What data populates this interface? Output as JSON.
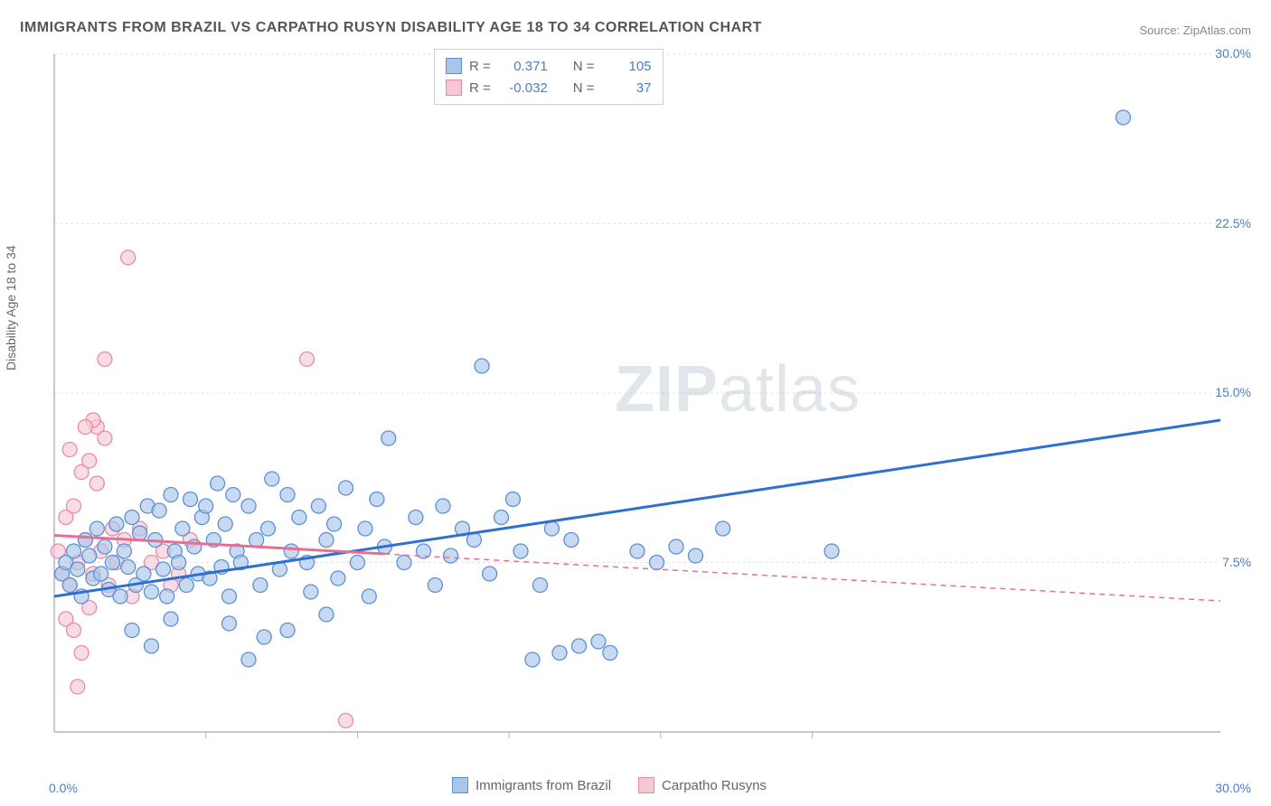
{
  "title": "IMMIGRANTS FROM BRAZIL VS CARPATHO RUSYN DISABILITY AGE 18 TO 34 CORRELATION CHART",
  "source": "Source: ZipAtlas.com",
  "y_axis_label": "Disability Age 18 to 34",
  "watermark_bold": "ZIP",
  "watermark_rest": "atlas",
  "chart": {
    "type": "scatter",
    "xlim": [
      0,
      30
    ],
    "ylim": [
      0,
      30
    ],
    "y_ticks": [
      7.5,
      15.0,
      22.5,
      30.0
    ],
    "y_tick_labels": [
      "7.5%",
      "15.0%",
      "22.5%",
      "30.0%"
    ],
    "x_tick_min_label": "0.0%",
    "x_tick_max_label": "30.0%",
    "x_minor_ticks": [
      3.9,
      7.8,
      11.7,
      15.6,
      19.5
    ],
    "background_color": "#ffffff",
    "grid_color": "#e3e3e3",
    "axis_color": "#b5b5b5",
    "series_a": {
      "name": "Immigrants from Brazil",
      "fill_color": "#a9c6ea",
      "stroke_color": "#5b8fd6",
      "line_color": "#2f6fd0",
      "r_value": "0.371",
      "n_value": "105",
      "marker_radius": 8,
      "trend": {
        "x1": 0,
        "y1": 6.0,
        "x2": 30,
        "y2": 13.8,
        "solid_until_x": 10.3
      },
      "points": [
        [
          0.2,
          7.0
        ],
        [
          0.3,
          7.5
        ],
        [
          0.4,
          6.5
        ],
        [
          0.5,
          8.0
        ],
        [
          0.6,
          7.2
        ],
        [
          0.7,
          6.0
        ],
        [
          0.8,
          8.5
        ],
        [
          0.9,
          7.8
        ],
        [
          1.0,
          6.8
        ],
        [
          1.1,
          9.0
        ],
        [
          1.2,
          7.0
        ],
        [
          1.3,
          8.2
        ],
        [
          1.4,
          6.3
        ],
        [
          1.5,
          7.5
        ],
        [
          1.6,
          9.2
        ],
        [
          1.7,
          6.0
        ],
        [
          1.8,
          8.0
        ],
        [
          1.9,
          7.3
        ],
        [
          2.0,
          9.5
        ],
        [
          2.1,
          6.5
        ],
        [
          2.2,
          8.8
        ],
        [
          2.3,
          7.0
        ],
        [
          2.4,
          10.0
        ],
        [
          2.5,
          6.2
        ],
        [
          2.6,
          8.5
        ],
        [
          2.7,
          9.8
        ],
        [
          2.8,
          7.2
        ],
        [
          2.9,
          6.0
        ],
        [
          3.0,
          10.5
        ],
        [
          3.1,
          8.0
        ],
        [
          3.2,
          7.5
        ],
        [
          3.3,
          9.0
        ],
        [
          3.4,
          6.5
        ],
        [
          3.5,
          10.3
        ],
        [
          3.6,
          8.2
        ],
        [
          3.7,
          7.0
        ],
        [
          3.8,
          9.5
        ],
        [
          3.9,
          10.0
        ],
        [
          4.0,
          6.8
        ],
        [
          4.1,
          8.5
        ],
        [
          4.2,
          11.0
        ],
        [
          4.3,
          7.3
        ],
        [
          4.4,
          9.2
        ],
        [
          4.5,
          6.0
        ],
        [
          4.6,
          10.5
        ],
        [
          4.7,
          8.0
        ],
        [
          4.8,
          7.5
        ],
        [
          5.0,
          10.0
        ],
        [
          5.2,
          8.5
        ],
        [
          5.3,
          6.5
        ],
        [
          5.5,
          9.0
        ],
        [
          5.6,
          11.2
        ],
        [
          5.8,
          7.2
        ],
        [
          6.0,
          10.5
        ],
        [
          6.1,
          8.0
        ],
        [
          6.3,
          9.5
        ],
        [
          6.5,
          7.5
        ],
        [
          6.6,
          6.2
        ],
        [
          6.8,
          10.0
        ],
        [
          7.0,
          8.5
        ],
        [
          7.2,
          9.2
        ],
        [
          7.3,
          6.8
        ],
        [
          7.5,
          10.8
        ],
        [
          7.8,
          7.5
        ],
        [
          8.0,
          9.0
        ],
        [
          8.1,
          6.0
        ],
        [
          8.3,
          10.3
        ],
        [
          8.5,
          8.2
        ],
        [
          8.6,
          13.0
        ],
        [
          9.0,
          7.5
        ],
        [
          9.3,
          9.5
        ],
        [
          9.5,
          8.0
        ],
        [
          9.8,
          6.5
        ],
        [
          10.0,
          10.0
        ],
        [
          10.2,
          7.8
        ],
        [
          10.5,
          9.0
        ],
        [
          10.8,
          8.5
        ],
        [
          11.0,
          16.2
        ],
        [
          11.2,
          7.0
        ],
        [
          11.5,
          9.5
        ],
        [
          11.8,
          10.3
        ],
        [
          12.0,
          8.0
        ],
        [
          12.3,
          3.2
        ],
        [
          12.5,
          6.5
        ],
        [
          12.8,
          9.0
        ],
        [
          13.0,
          3.5
        ],
        [
          13.3,
          8.5
        ],
        [
          13.5,
          3.8
        ],
        [
          14.0,
          4.0
        ],
        [
          14.3,
          3.5
        ],
        [
          15.0,
          8.0
        ],
        [
          15.5,
          7.5
        ],
        [
          16.0,
          8.2
        ],
        [
          16.5,
          7.8
        ],
        [
          17.2,
          9.0
        ],
        [
          20.0,
          8.0
        ],
        [
          27.5,
          27.2
        ],
        [
          3.0,
          5.0
        ],
        [
          4.5,
          4.8
        ],
        [
          5.0,
          3.2
        ],
        [
          6.0,
          4.5
        ],
        [
          7.0,
          5.2
        ],
        [
          2.0,
          4.5
        ],
        [
          2.5,
          3.8
        ],
        [
          5.4,
          4.2
        ]
      ]
    },
    "series_b": {
      "name": "Carpatho Rusyns",
      "fill_color": "#f5c9d4",
      "stroke_color": "#e88ba5",
      "line_color": "#e76f91",
      "r_value": "-0.032",
      "n_value": "37",
      "marker_radius": 8,
      "trend": {
        "x1": 0,
        "y1": 8.7,
        "x2": 30,
        "y2": 5.8,
        "solid_until_x": 8.5
      },
      "points": [
        [
          0.1,
          8.0
        ],
        [
          0.2,
          7.0
        ],
        [
          0.3,
          9.5
        ],
        [
          0.4,
          6.5
        ],
        [
          0.5,
          10.0
        ],
        [
          0.6,
          7.5
        ],
        [
          0.7,
          11.5
        ],
        [
          0.8,
          8.5
        ],
        [
          0.9,
          12.0
        ],
        [
          1.0,
          7.0
        ],
        [
          1.1,
          13.5
        ],
        [
          1.2,
          8.0
        ],
        [
          1.3,
          13.0
        ],
        [
          1.4,
          6.5
        ],
        [
          1.5,
          9.0
        ],
        [
          0.3,
          5.0
        ],
        [
          0.5,
          4.5
        ],
        [
          0.7,
          3.5
        ],
        [
          0.9,
          5.5
        ],
        [
          1.6,
          7.5
        ],
        [
          1.8,
          8.5
        ],
        [
          2.0,
          6.0
        ],
        [
          2.2,
          9.0
        ],
        [
          2.5,
          7.5
        ],
        [
          2.8,
          8.0
        ],
        [
          3.0,
          6.5
        ],
        [
          0.6,
          2.0
        ],
        [
          1.0,
          13.8
        ],
        [
          1.3,
          16.5
        ],
        [
          1.9,
          21.0
        ],
        [
          3.2,
          7.0
        ],
        [
          3.5,
          8.5
        ],
        [
          0.4,
          12.5
        ],
        [
          6.5,
          16.5
        ],
        [
          7.5,
          0.5
        ],
        [
          1.1,
          11.0
        ],
        [
          0.8,
          13.5
        ]
      ]
    }
  },
  "stats_labels": {
    "r": "R =",
    "n": "N ="
  },
  "bottom_legend": {
    "a_label": "Immigrants from Brazil",
    "b_label": "Carpatho Rusyns"
  }
}
